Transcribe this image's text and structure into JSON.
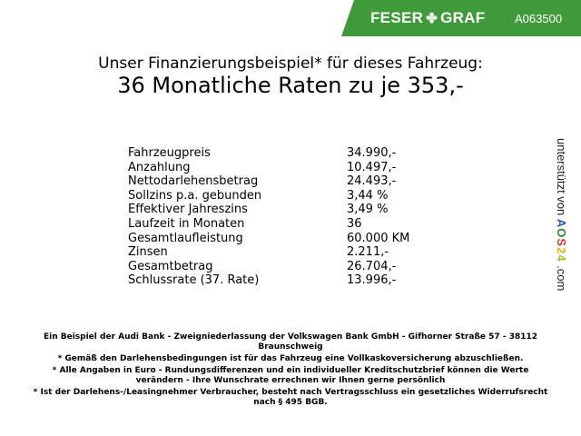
{
  "header": {
    "brand": "FESER",
    "brand2": "GRAF",
    "code": "A063500",
    "brand_color": "#3f9b3a",
    "logo_icon": "clover-icon"
  },
  "title": {
    "line1": "Unser Finanzierungsbeispiel* für dieses Fahrzeug:",
    "line2": "36 Monatliche Raten zu je 353,-"
  },
  "rows": [
    {
      "label": "Fahrzeugpreis",
      "value": "34.990,-"
    },
    {
      "label": "Anzahlung",
      "value": "10.497,-"
    },
    {
      "label": "Nettodarlehensbetrag",
      "value": "24.493,-"
    },
    {
      "label": "Sollzins p.a. gebunden",
      "value": "3,44 %"
    },
    {
      "label": "Effektiver Jahreszins",
      "value": "3,49 %"
    },
    {
      "label": "Laufzeit in Monaten",
      "value": "36"
    },
    {
      "label": "Gesamtlaufleistung",
      "value": "60.000 KM"
    },
    {
      "label": "Zinsen",
      "value": "2.211,-"
    },
    {
      "label": "Gesamtbetrag",
      "value": "26.704,-"
    },
    {
      "label": "Schlussrate (37. Rate)",
      "value": "13.996,-"
    }
  ],
  "side": {
    "text": "unterstützt von",
    "logo": "AOS24",
    "suffix": ".com"
  },
  "footer": [
    "Ein Beispiel der Audi Bank - Zweigniederlassung der Volkswagen Bank GmbH - Gifhorner Straße 57 - 38112 Braunschweig",
    "* Gemäß den Darlehensbedingungen ist für das Fahrzeug eine Vollkaskoversicherung abzuschließen.",
    "* Alle Angaben in Euro - Rundungsdifferenzen und ein individueller Kreditschutzbrief können die Werte verändern - Ihre Wunschrate errechnen wir Ihnen gerne persönlich",
    "* Ist der Darlehens-/Leasingnehmer Verbraucher, besteht nach Vertragsschluss ein gesetzliches Widerrufsrecht nach § 495 BGB."
  ]
}
